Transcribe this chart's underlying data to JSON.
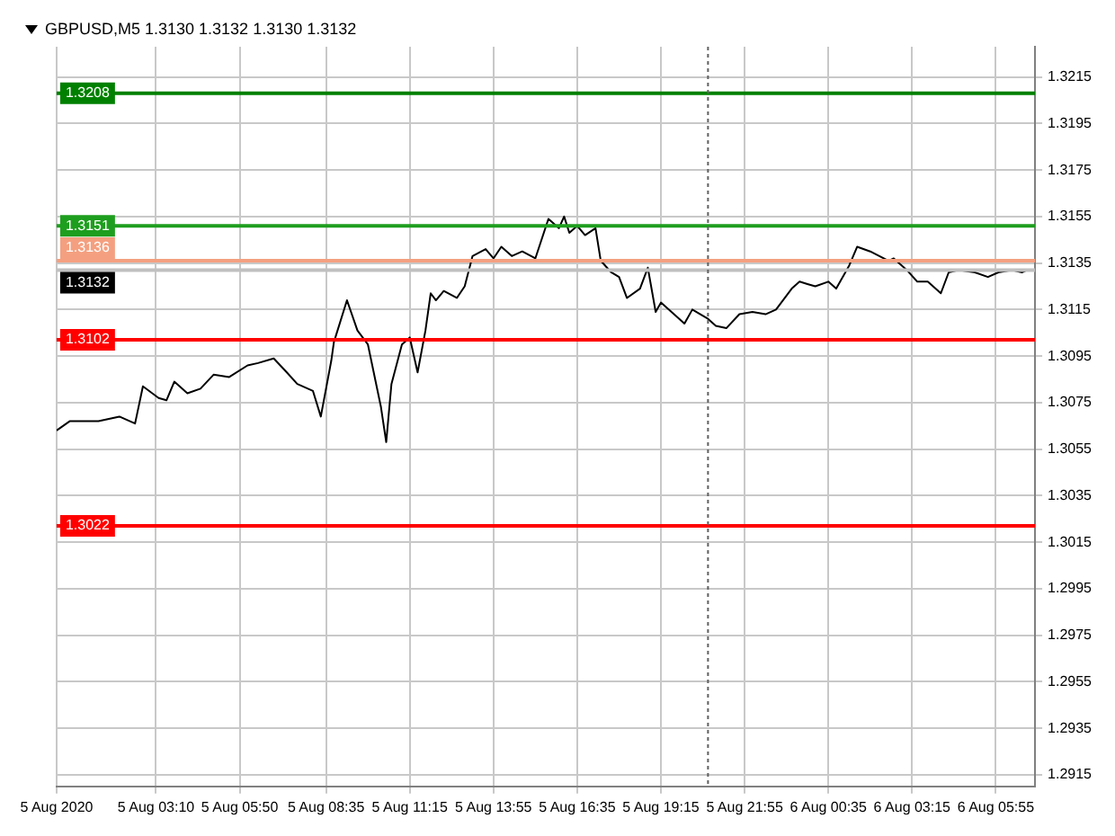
{
  "chart_data": {
    "type": "line",
    "title": "GBPUSD,M5  1.3130 1.3132 1.3130 1.3132",
    "x": [
      "2020-08-05T00:00",
      "2020-08-05T00:25",
      "2020-08-05T01:20",
      "2020-08-05T02:00",
      "2020-08-05T02:30",
      "2020-08-05T02:45",
      "2020-08-05T03:15",
      "2020-08-05T03:30",
      "2020-08-05T03:45",
      "2020-08-05T04:10",
      "2020-08-05T04:35",
      "2020-08-05T05:00",
      "2020-08-05T05:30",
      "2020-08-05T06:05",
      "2020-08-05T06:25",
      "2020-08-05T06:55",
      "2020-08-05T07:20",
      "2020-08-05T07:40",
      "2020-08-05T08:10",
      "2020-08-05T08:25",
      "2020-08-05T08:45",
      "2020-08-05T08:50",
      "2020-08-05T09:15",
      "2020-08-05T09:35",
      "2020-08-05T09:55",
      "2020-08-05T10:20",
      "2020-08-05T10:30",
      "2020-08-05T10:40",
      "2020-08-05T11:00",
      "2020-08-05T11:15",
      "2020-08-05T11:30",
      "2020-08-05T11:45",
      "2020-08-05T11:55",
      "2020-08-05T12:05",
      "2020-08-05T12:20",
      "2020-08-05T12:45",
      "2020-08-05T13:00",
      "2020-08-05T13:15",
      "2020-08-05T13:40",
      "2020-08-05T13:55",
      "2020-08-05T14:10",
      "2020-08-05T14:30",
      "2020-08-05T14:50",
      "2020-08-05T15:15",
      "2020-08-05T15:40",
      "2020-08-05T16:00",
      "2020-08-05T16:10",
      "2020-08-05T16:20",
      "2020-08-05T16:35",
      "2020-08-05T16:50",
      "2020-08-05T17:10",
      "2020-08-05T17:20",
      "2020-08-05T17:40",
      "2020-08-05T17:55",
      "2020-08-05T18:10",
      "2020-08-05T18:35",
      "2020-08-05T18:50",
      "2020-08-05T19:05",
      "2020-08-05T19:15",
      "2020-08-05T19:40",
      "2020-08-05T20:00",
      "2020-08-05T20:15",
      "2020-08-05T20:45",
      "2020-08-05T21:00",
      "2020-08-05T21:20",
      "2020-08-05T21:45",
      "2020-08-05T22:10",
      "2020-08-05T22:35",
      "2020-08-05T22:55",
      "2020-08-05T23:25",
      "2020-08-05T23:40",
      "2020-08-05T23:55",
      "2020-08-06T00:10",
      "2020-08-06T00:35",
      "2020-08-06T00:50",
      "2020-08-06T01:15",
      "2020-08-06T01:30",
      "2020-08-06T01:55",
      "2020-08-06T02:30",
      "2020-08-06T02:40",
      "2020-08-06T03:05",
      "2020-08-06T03:25",
      "2020-08-06T03:45",
      "2020-08-06T04:10",
      "2020-08-06T04:25",
      "2020-08-06T04:45",
      "2020-08-06T05:15",
      "2020-08-06T05:40",
      "2020-08-06T06:00",
      "2020-08-06T06:25",
      "2020-08-06T06:45",
      "2020-08-06T06:55"
    ],
    "series": [
      {
        "color": "#000000",
        "values": [
          1.3063,
          1.3067,
          1.3067,
          1.3069,
          1.3066,
          1.3082,
          1.3077,
          1.3076,
          1.3084,
          1.3079,
          1.3081,
          1.3087,
          1.3086,
          1.3091,
          1.3092,
          1.3094,
          1.3088,
          1.3083,
          1.308,
          1.3069,
          1.3093,
          1.3101,
          1.3119,
          1.3106,
          1.31,
          1.3073,
          1.3058,
          1.3083,
          1.31,
          1.3103,
          1.3088,
          1.3106,
          1.3122,
          1.3119,
          1.3123,
          1.312,
          1.3125,
          1.3138,
          1.3141,
          1.3137,
          1.3142,
          1.3138,
          1.314,
          1.3137,
          1.3154,
          1.315,
          1.3155,
          1.3148,
          1.3151,
          1.3147,
          1.315,
          1.3136,
          1.3131,
          1.3129,
          1.312,
          1.3124,
          1.3133,
          1.3114,
          1.3118,
          1.3113,
          1.3109,
          1.3115,
          1.3111,
          1.3108,
          1.3107,
          1.3113,
          1.3114,
          1.3113,
          1.3115,
          1.3124,
          1.3127,
          1.3126,
          1.3125,
          1.3127,
          1.3124,
          1.3134,
          1.3142,
          1.314,
          1.3136,
          1.3137,
          1.3132,
          1.3127,
          1.3127,
          1.3122,
          1.3131,
          1.3132,
          1.3131,
          1.3129,
          1.3131,
          1.3132,
          1.3131,
          1.3132
        ]
      }
    ],
    "xlim": [
      "2020-08-05T00:00",
      "2020-08-06T07:10"
    ],
    "xticks": [
      {
        "value": "2020-08-05T00:00",
        "label": "5 Aug 2020"
      },
      {
        "value": "2020-08-05T03:10",
        "label": "5 Aug 03:10"
      },
      {
        "value": "2020-08-05T05:50",
        "label": "5 Aug 05:50"
      },
      {
        "value": "2020-08-05T08:35",
        "label": "5 Aug 08:35"
      },
      {
        "value": "2020-08-05T11:15",
        "label": "5 Aug 11:15"
      },
      {
        "value": "2020-08-05T13:55",
        "label": "5 Aug 13:55"
      },
      {
        "value": "2020-08-05T16:35",
        "label": "5 Aug 16:35"
      },
      {
        "value": "2020-08-05T19:15",
        "label": "5 Aug 19:15"
      },
      {
        "value": "2020-08-05T21:55",
        "label": "5 Aug 21:55"
      },
      {
        "value": "2020-08-06T00:35",
        "label": "6 Aug 00:35"
      },
      {
        "value": "2020-08-06T03:15",
        "label": "6 Aug 03:15"
      },
      {
        "value": "2020-08-06T05:55",
        "label": "6 Aug 05:55"
      }
    ],
    "ylim": [
      1.291,
      1.3228
    ],
    "yticks": [
      1.3215,
      1.3195,
      1.3175,
      1.3155,
      1.3135,
      1.3115,
      1.3095,
      1.3075,
      1.3055,
      1.3035,
      1.3015,
      1.2995,
      1.2975,
      1.2955,
      1.2935,
      1.2915
    ],
    "grid": true,
    "legend": false,
    "marker": "none",
    "ref_lines": [
      {
        "axis": "y",
        "value": 1.3208,
        "label": "1.3208",
        "color": "#008000"
      },
      {
        "axis": "y",
        "value": 1.3151,
        "label": "1.3151",
        "color": "#1e9e1e"
      },
      {
        "axis": "y",
        "value": 1.3136,
        "label": "1.3136",
        "color": "#f4a080"
      },
      {
        "axis": "y",
        "value": 1.3132,
        "label": "1.3132",
        "color": "#c0c0c0"
      },
      {
        "axis": "y",
        "value": 1.3102,
        "label": "1.3102",
        "color": "#ff0000"
      },
      {
        "axis": "y",
        "value": 1.3022,
        "label": "1.3022",
        "color": "#ff0000"
      },
      {
        "axis": "x",
        "value": "2020-08-05T20:45",
        "color": "#606060",
        "line_style": "dotted"
      }
    ]
  }
}
